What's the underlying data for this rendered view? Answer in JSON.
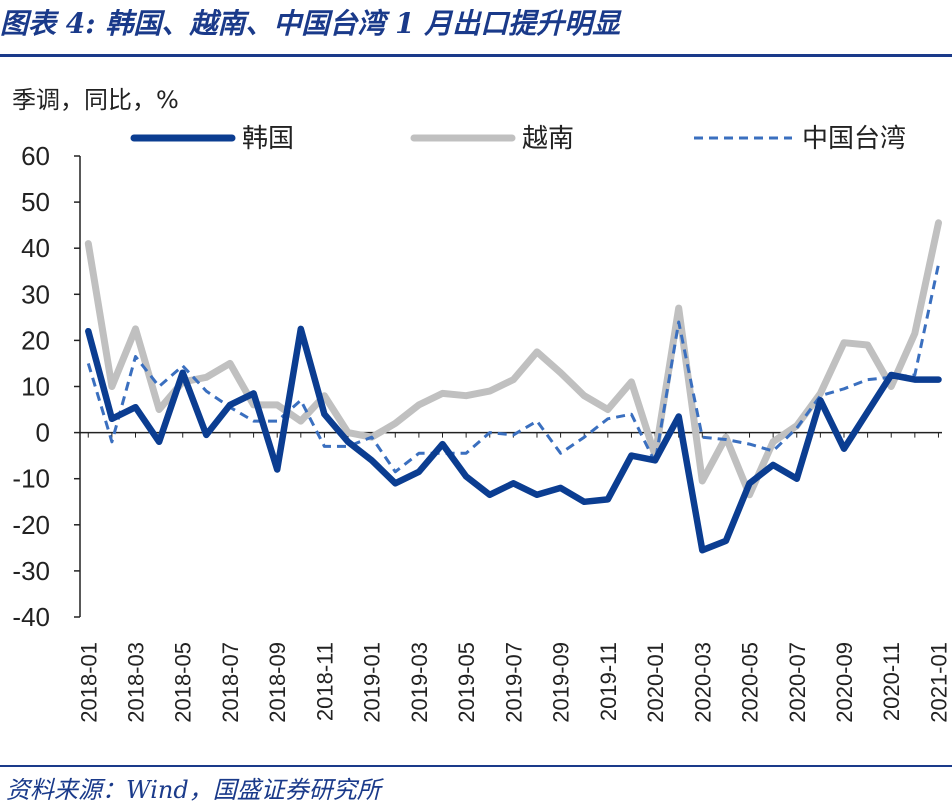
{
  "header": {
    "title": "图表 4:  韩国、越南、中国台湾 1 月出口提升明显"
  },
  "footer": {
    "source": "资料来源：Wind，国盛证券研究所"
  },
  "chart_data": {
    "type": "line",
    "title": "图表 4:  韩国、越南、中国台湾 1 月出口提升明显",
    "ylabel": "季调，同比，%",
    "xlabel": "",
    "ylim": [
      -40,
      60
    ],
    "yticks": [
      "60",
      "50",
      "40",
      "30",
      "20",
      "10",
      "0",
      "-10",
      "-20",
      "-30",
      "-40"
    ],
    "legend_position": "top",
    "x": [
      "2018-01",
      "2018-02",
      "2018-03",
      "2018-04",
      "2018-05",
      "2018-06",
      "2018-07",
      "2018-08",
      "2018-09",
      "2018-10",
      "2018-11",
      "2018-12",
      "2019-01",
      "2019-02",
      "2019-03",
      "2019-04",
      "2019-05",
      "2019-06",
      "2019-07",
      "2019-08",
      "2019-09",
      "2019-10",
      "2019-11",
      "2019-12",
      "2020-01",
      "2020-02",
      "2020-03",
      "2020-04",
      "2020-05",
      "2020-06",
      "2020-07",
      "2020-08",
      "2020-09",
      "2020-10",
      "2020-11",
      "2020-12",
      "2021-01"
    ],
    "xtick_labels": [
      "2018-01",
      "2018-03",
      "2018-05",
      "2018-07",
      "2018-09",
      "2018-11",
      "2019-01",
      "2019-03",
      "2019-05",
      "2019-07",
      "2019-09",
      "2019-11",
      "2020-01",
      "2020-03",
      "2020-05",
      "2020-07",
      "2020-09",
      "2020-11",
      "2021-01"
    ],
    "series": [
      {
        "name": "韩国",
        "style": "solid-thick",
        "color": "#0b3d91",
        "values": [
          22,
          3,
          5.5,
          -2,
          13,
          -0.5,
          6,
          8.5,
          -8,
          22.5,
          4,
          -2,
          -6,
          -11,
          -8.5,
          -2.5,
          -9.5,
          -13.5,
          -11,
          -13.5,
          -12,
          -15,
          -14.5,
          -5,
          -6,
          3.5,
          -25.5,
          -23.5,
          -11,
          -7,
          -10,
          7,
          -3.5,
          4.5,
          12.5,
          11.5,
          11.5
        ]
      },
      {
        "name": "越南",
        "style": "solid-thick",
        "color": "#c0c0c0",
        "values": [
          41,
          10,
          22.5,
          5,
          11,
          12,
          15,
          6,
          6,
          2.5,
          8,
          0,
          -1,
          2,
          6,
          8.5,
          8,
          9,
          11.5,
          17.5,
          13,
          8,
          5,
          11,
          -5,
          27,
          -10.5,
          -1,
          -13.5,
          -2,
          1.5,
          8.5,
          19.5,
          19,
          10,
          21.5,
          45.5
        ]
      },
      {
        "name": "中国台湾",
        "style": "dashed",
        "color": "#3a6fbf",
        "values": [
          15,
          -2,
          16.5,
          10,
          14.5,
          9,
          5.5,
          2.5,
          2.5,
          7,
          -3,
          -3,
          -1,
          -8.5,
          -4.5,
          -4.5,
          -4.5,
          0,
          -0.5,
          2.5,
          -4.5,
          -1,
          3,
          4,
          -6.5,
          24,
          -1,
          -1.5,
          -2.5,
          -4,
          1,
          8,
          9.5,
          11.5,
          12,
          12.5,
          36.5
        ]
      }
    ]
  }
}
